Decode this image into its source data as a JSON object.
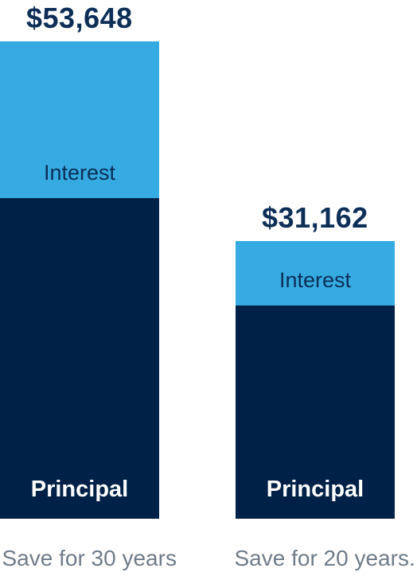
{
  "chart_data": {
    "type": "bar",
    "stacked": true,
    "categories": [
      "Save for 30 years",
      "Save for 20 years."
    ],
    "totals": [
      53648,
      31162
    ],
    "total_labels": [
      "$53,648",
      "$31,162"
    ],
    "series": [
      {
        "name": "Principal",
        "values": [
          36000,
          24000
        ],
        "color": "#002147"
      },
      {
        "name": "Interest",
        "values": [
          17648,
          7162
        ],
        "color": "#35abe1"
      }
    ],
    "ylim": [
      0,
      53648
    ],
    "grid": false,
    "legend": "none"
  },
  "colors": {
    "principal": "#002147",
    "interest": "#35abe1",
    "total_label": "#0c2e57",
    "category_label": "#6f7c8a",
    "interest_text": "#0c2e57",
    "principal_text": "#ffffff"
  }
}
